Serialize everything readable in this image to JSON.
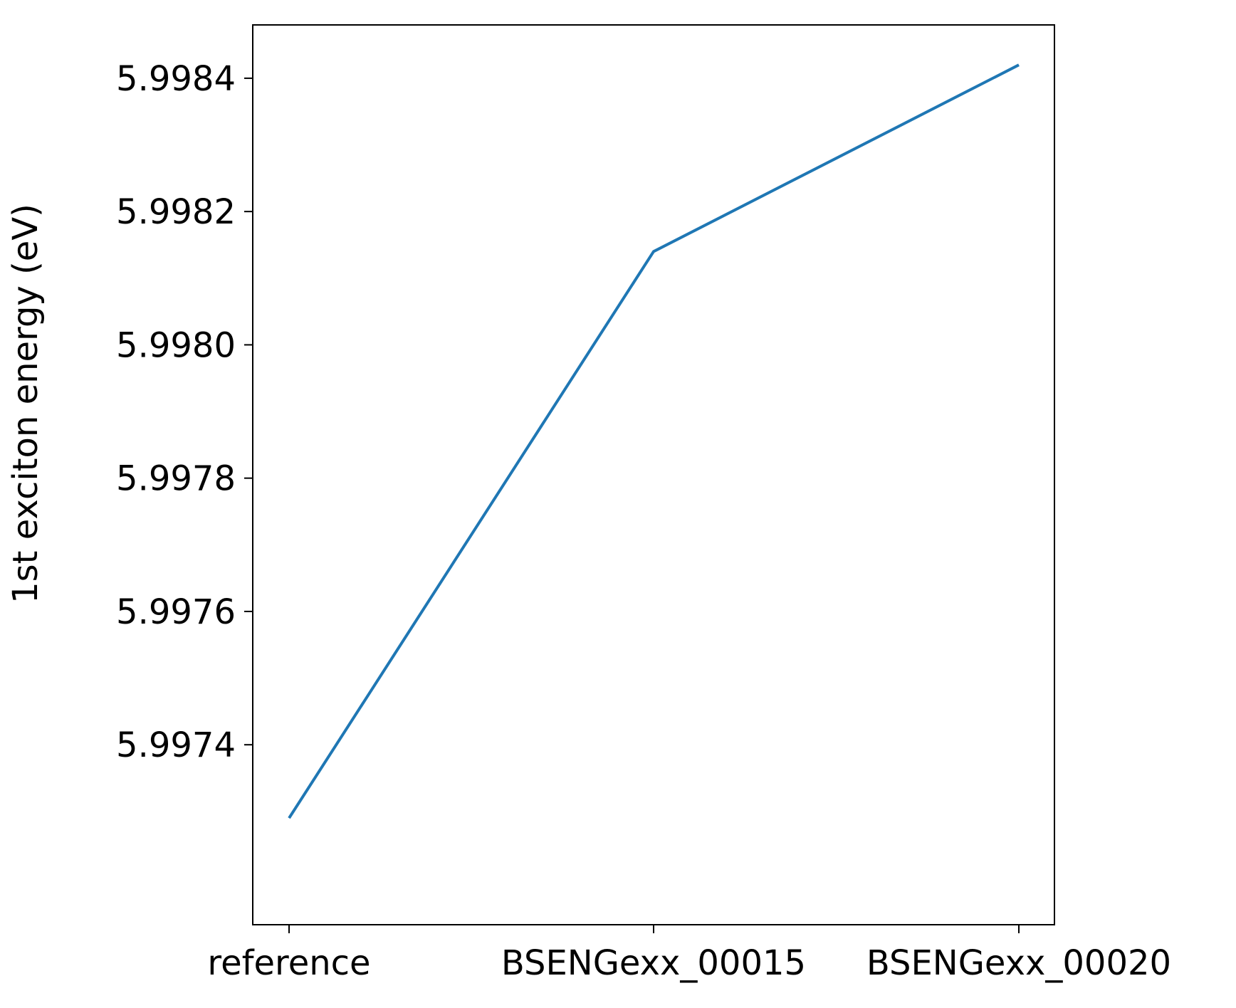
{
  "chart_data": {
    "type": "line",
    "title": "",
    "xlabel": "",
    "ylabel": "1st exciton energy (eV)",
    "categories": [
      "reference",
      "BSENGexx_00015",
      "BSENGexx_00020"
    ],
    "series": [
      {
        "values": [
          5.99729,
          5.99814,
          5.99842
        ],
        "color": "#1f77b4"
      }
    ],
    "ylim": [
      5.99713,
      5.99848
    ],
    "yticks": [
      5.9974,
      5.9976,
      5.9978,
      5.998,
      5.9982,
      5.9984
    ],
    "ytick_labels": [
      "5.9974",
      "5.9976",
      "5.9978",
      "5.9980",
      "5.9982",
      "5.9984"
    ],
    "grid": false,
    "legend": "none"
  }
}
